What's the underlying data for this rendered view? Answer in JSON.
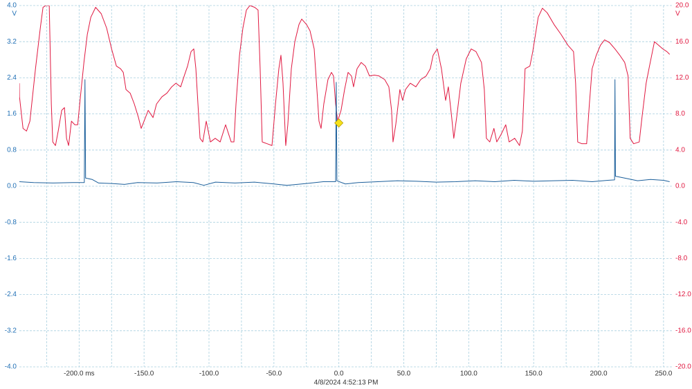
{
  "chart_data": {
    "type": "line",
    "ylabel": "V",
    "y2label": "V",
    "footer": "4/8/2024 4:52:13 PM",
    "xlim": [
      -246,
      257
    ],
    "xticks": [
      {
        "value": -200,
        "label": "-200.0 ms"
      },
      {
        "value": -150,
        "label": "-150.0"
      },
      {
        "value": -100,
        "label": "-100.0"
      },
      {
        "value": -50,
        "label": "-50.0"
      },
      {
        "value": 0,
        "label": "0.0"
      },
      {
        "value": 50,
        "label": "50.0"
      },
      {
        "value": 100,
        "label": "100.0"
      },
      {
        "value": 150,
        "label": "150.0"
      },
      {
        "value": 200,
        "label": "200.0"
      },
      {
        "value": 250,
        "label": "250.0"
      }
    ],
    "ylim": [
      -4,
      4
    ],
    "yticks": [
      {
        "value": 4,
        "label": "4.0"
      },
      3.2,
      2.4,
      1.6,
      0.8,
      {
        "value": 0,
        "label": "0.0"
      },
      -0.8,
      -1.6,
      -2.4,
      -3.2,
      {
        "value": -4,
        "label": "-4.0"
      }
    ],
    "y2lim": [
      -20,
      20
    ],
    "y2ticks": [
      {
        "value": 20,
        "label": "20.0"
      },
      {
        "value": 16,
        "label": "16.0"
      },
      {
        "value": 12,
        "label": "12.0"
      },
      {
        "value": 8,
        "label": "8.0"
      },
      {
        "value": 4,
        "label": "4.0"
      },
      {
        "value": 0,
        "label": "0.0"
      },
      {
        "value": -4,
        "label": "-4.0"
      },
      {
        "value": -8,
        "label": "-8.0"
      },
      {
        "value": -12,
        "label": "-12.0"
      },
      {
        "value": -16,
        "label": "-16.0"
      },
      {
        "value": -20,
        "label": "-20.0"
      }
    ],
    "grid": true,
    "ycolor": "#1f6fb5",
    "y2color": "#e0173f",
    "trigger": {
      "x": 0,
      "y": 1.4,
      "color": "#f5e11b"
    },
    "series": [
      {
        "color": "#e0173f",
        "axis": "y2",
        "x": [
          -246,
          -245.9,
          -243.2,
          -240.5,
          -237.9,
          -233.6,
          -229.9,
          -227.8,
          -225.6,
          -223.0,
          -221.4,
          -220.3,
          -218.2,
          -216.1,
          -213.4,
          -211.3,
          -209.7,
          -208.1,
          -205.9,
          -203.3,
          -201.1,
          -199.0,
          -196.3,
          -193.7,
          -191.0,
          -187.3,
          -183.0,
          -178.8,
          -175.0,
          -171.3,
          -168.1,
          -166.0,
          -163.9,
          -160.7,
          -157.5,
          -154.3,
          -152.2,
          -150.0,
          -146.8,
          -143.1,
          -140.4,
          -136.2,
          -132.4,
          -128.7,
          -125.5,
          -121.8,
          -119.1,
          -116.5,
          -113.8,
          -111.7,
          -110.1,
          -108.5,
          -106.9,
          -104.8,
          -102.1,
          -98.9,
          -95.2,
          -91.4,
          -87.2,
          -82.9,
          -80.8,
          -79.2,
          -76.5,
          -73.9,
          -71.2,
          -68.5,
          -64.8,
          -62.2,
          -60.6,
          -59.0,
          -55.2,
          -51.5,
          -48.8,
          -46.2,
          -44.6,
          -43.0,
          -40.9,
          -39.3,
          -36.6,
          -33.9,
          -30.7,
          -28.6,
          -24.9,
          -22.2,
          -19.0,
          -16.9,
          -15.3,
          -13.7,
          -11.6,
          -8.4,
          -5.7,
          -4.1,
          -2.5,
          -0.9,
          1.7,
          4.4,
          7.1,
          9.7,
          11.3,
          14.0,
          17.2,
          20.4,
          23.6,
          27.3,
          31.0,
          35.3,
          38.5,
          40.6,
          41.7,
          43.8,
          47.0,
          49.1,
          51.3,
          55.0,
          59.3,
          63.0,
          67.2,
          70.4,
          72.6,
          75.8,
          79.0,
          82.2,
          84.3,
          86.9,
          88.5,
          90.7,
          93.9,
          98.1,
          101.9,
          105.6,
          109.8,
          112.0,
          113.6,
          116.2,
          119.4,
          121.6,
          124.8,
          128.5,
          131.1,
          135.4,
          139.1,
          141.3,
          143.4,
          147.1,
          149.3,
          151.4,
          153.5,
          156.7,
          160.4,
          165.7,
          171.1,
          176.4,
          180.7,
          182.3,
          183.9,
          187.1,
          190.8,
          192.9,
          195.0,
          198.2,
          201.4,
          204.6,
          208.4,
          212.6,
          216.3,
          220.1,
          222.7,
          224.3,
          227.0,
          231.3,
          233.4,
          236.6,
          239.2,
          243.0,
          246.2,
          249.4,
          252.6,
          254.7
        ],
        "values": [
          11.4,
          9.9,
          6.4,
          6.1,
          7.2,
          13.0,
          17.5,
          19.8,
          20,
          20,
          9.1,
          4.9,
          4.5,
          6.1,
          8.4,
          8.7,
          5.3,
          4.5,
          7.2,
          6.8,
          6.8,
          9.9,
          13.7,
          16.8,
          18.7,
          19.8,
          19.1,
          17.5,
          15.2,
          13.3,
          13.0,
          12.6,
          10.7,
          10.3,
          9.1,
          7.6,
          6.4,
          7.2,
          8.4,
          7.6,
          9.1,
          9.9,
          10.3,
          11.0,
          11.4,
          11.0,
          12.2,
          13.3,
          14.9,
          15.2,
          13.0,
          9.1,
          5.3,
          4.9,
          7.2,
          4.9,
          5.3,
          4.9,
          6.8,
          4.9,
          4.9,
          9.1,
          14.5,
          17.5,
          19.5,
          20,
          19.8,
          19.5,
          13.0,
          4.9,
          4.7,
          4.5,
          9.1,
          13.0,
          14.5,
          11.4,
          4.5,
          6.8,
          13.0,
          16.0,
          17.9,
          18.5,
          17.9,
          17.2,
          15.2,
          10.7,
          7.2,
          6.4,
          9.1,
          11.8,
          12.6,
          12.2,
          9.1,
          7.2,
          8.4,
          10.7,
          12.6,
          12.2,
          11.0,
          13.0,
          13.7,
          13.3,
          12.2,
          12.3,
          12.2,
          11.8,
          11.0,
          8.4,
          4.9,
          6.8,
          10.7,
          9.5,
          10.7,
          11.4,
          11.0,
          11.8,
          12.2,
          13.0,
          14.5,
          15.2,
          13.0,
          9.5,
          11.0,
          7.6,
          5.3,
          7.6,
          11.4,
          14.1,
          15.2,
          14.9,
          13.7,
          10.7,
          5.3,
          4.9,
          6.4,
          4.9,
          5.7,
          6.8,
          4.9,
          5.3,
          4.5,
          6.1,
          13.0,
          13.3,
          14.9,
          16.8,
          18.7,
          19.7,
          19.2,
          17.9,
          16.8,
          15.6,
          14.9,
          11.4,
          4.9,
          4.7,
          4.7,
          9.1,
          13.0,
          14.5,
          15.6,
          16.2,
          15.9,
          15.2,
          14.5,
          13.7,
          12.2,
          5.3,
          4.7,
          4.9,
          7.6,
          11.4,
          13.3,
          16.0,
          15.6,
          15.2,
          14.9,
          14.6
        ]
      },
      {
        "color": "#1a5e9a",
        "axis": "y",
        "x": [
          -246,
          -235,
          -220,
          -205,
          -196,
          -195.5,
          -195,
          -190,
          -185,
          -175,
          -165,
          -155,
          -140,
          -125,
          -112,
          -104,
          -95,
          -80,
          -65,
          -50,
          -40,
          -25,
          -12,
          -2.5,
          -2,
          -1.5,
          5,
          15,
          30,
          45,
          60,
          75,
          90,
          105,
          120,
          135,
          150,
          165,
          180,
          195,
          207,
          212.3,
          212.6,
          213,
          220,
          230,
          240,
          250,
          254.7
        ],
        "values": [
          0.1,
          0.08,
          0.07,
          0.08,
          0.08,
          2.36,
          0.18,
          0.15,
          0.07,
          0.06,
          0.04,
          0.08,
          0.07,
          0.1,
          0.08,
          0.02,
          0.09,
          0.07,
          0.09,
          0.05,
          0.02,
          0.06,
          0.1,
          0.1,
          2.3,
          0.12,
          0.05,
          0.08,
          0.1,
          0.12,
          0.11,
          0.09,
          0.1,
          0.12,
          0.1,
          0.13,
          0.11,
          0.12,
          0.13,
          0.1,
          0.13,
          0.14,
          2.36,
          0.22,
          0.18,
          0.12,
          0.15,
          0.13,
          0.1
        ]
      }
    ]
  }
}
